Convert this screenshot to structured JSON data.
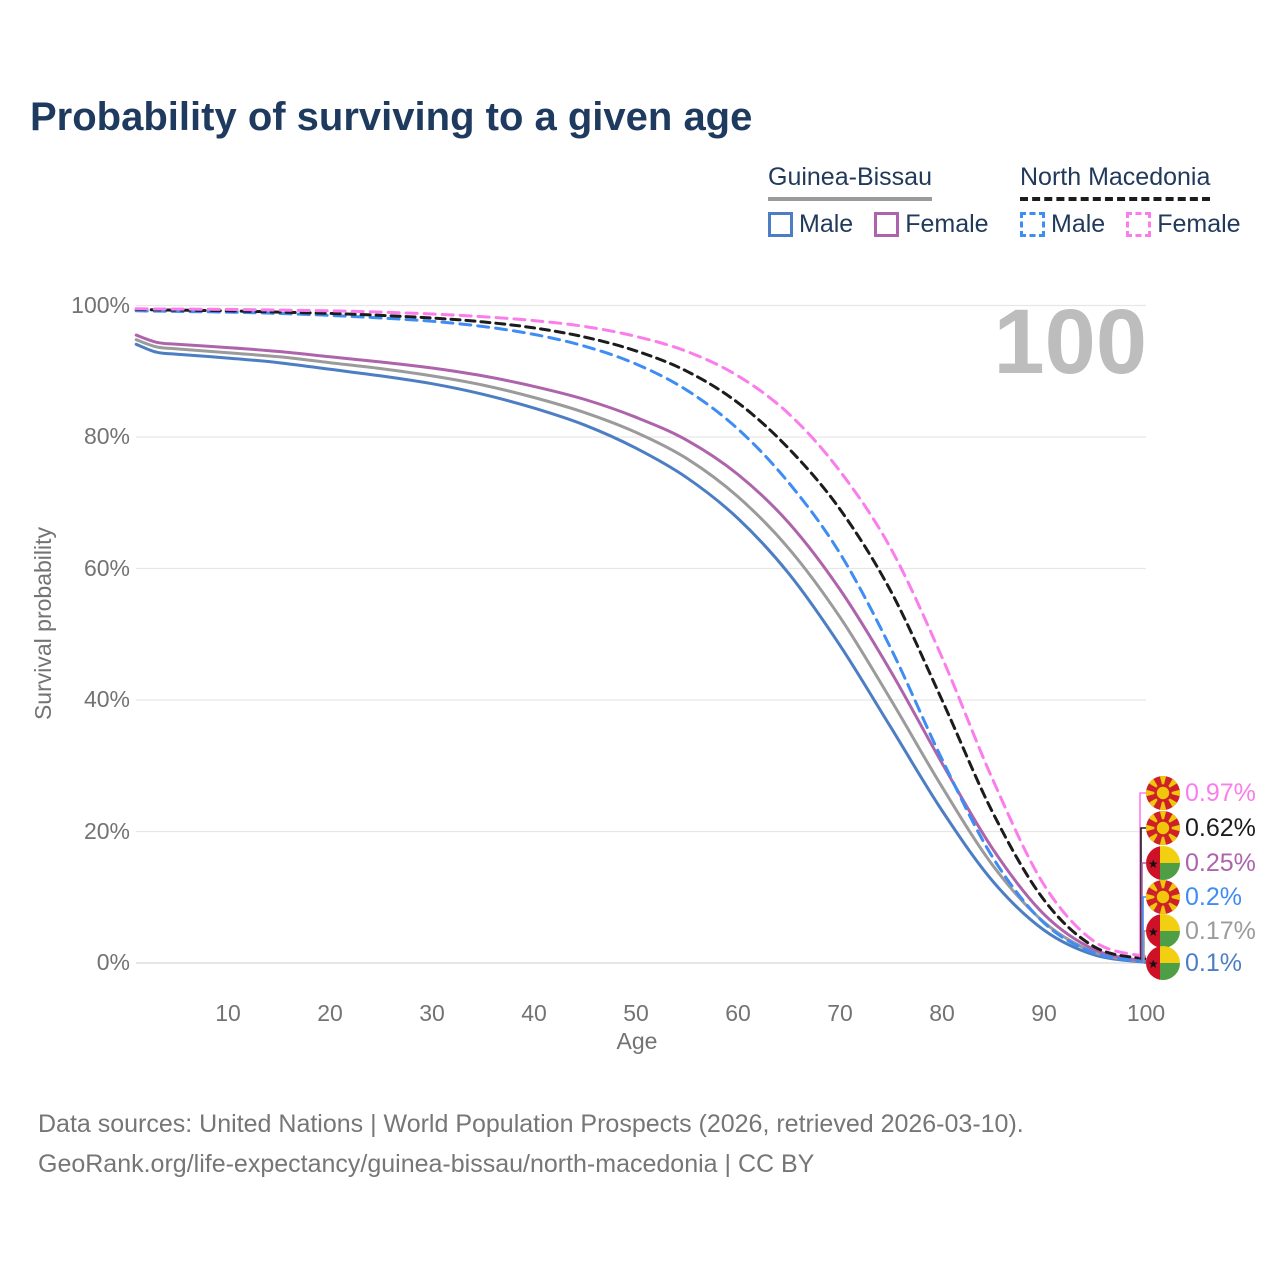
{
  "title": "Probability of surviving to a given age",
  "watermark": "100",
  "legend": {
    "groups": [
      {
        "label": "Guinea-Bissau",
        "line_style": "solid",
        "underline_color": "#9b9b9b",
        "items": [
          {
            "label": "Male",
            "color": "#4d7ec3",
            "dashed": false
          },
          {
            "label": "Female",
            "color": "#ae64ab",
            "dashed": false
          }
        ]
      },
      {
        "label": "North Macedonia",
        "line_style": "dashed",
        "underline_color": "#1c1c1c",
        "items": [
          {
            "label": "Male",
            "color": "#3f8df2",
            "dashed": true
          },
          {
            "label": "Female",
            "color": "#fb7deb",
            "dashed": true
          }
        ]
      }
    ]
  },
  "chart_data": {
    "type": "line",
    "title": "Probability of surviving to a given age",
    "xlabel": "Age",
    "ylabel": "Survival probability",
    "xlim": [
      1,
      100
    ],
    "ylim": [
      0,
      100
    ],
    "grid": "horizontal",
    "x_ticks": [
      {
        "v": 10,
        "label": "10"
      },
      {
        "v": 20,
        "label": "20"
      },
      {
        "v": 30,
        "label": "30"
      },
      {
        "v": 40,
        "label": "40"
      },
      {
        "v": 50,
        "label": "50"
      },
      {
        "v": 60,
        "label": "60"
      },
      {
        "v": 70,
        "label": "70"
      },
      {
        "v": 80,
        "label": "80"
      },
      {
        "v": 90,
        "label": "90"
      },
      {
        "v": 100,
        "label": "100"
      }
    ],
    "y_ticks": [
      {
        "v": 0,
        "label": "0%"
      },
      {
        "v": 20,
        "label": "20%"
      },
      {
        "v": 40,
        "label": "40%"
      },
      {
        "v": 60,
        "label": "60%"
      },
      {
        "v": 80,
        "label": "80%"
      },
      {
        "v": 100,
        "label": "100%"
      }
    ],
    "x": [
      1,
      3,
      5,
      10,
      15,
      20,
      25,
      30,
      35,
      40,
      45,
      50,
      55,
      60,
      65,
      70,
      75,
      80,
      85,
      90,
      95,
      100
    ],
    "series": [
      {
        "key": "gb_male",
        "name": "Guinea-Bissau Male",
        "color": "#4d7ec3",
        "dashed": false,
        "values": [
          94.1,
          92.9,
          92.6,
          92.0,
          91.3,
          90.3,
          89.3,
          88.1,
          86.5,
          84.4,
          81.8,
          78.3,
          73.8,
          67.6,
          59.2,
          48.3,
          35.8,
          23.2,
          12.4,
          5.0,
          1.2,
          0.1
        ]
      },
      {
        "key": "gb_total",
        "name": "Guinea-Bissau Total",
        "color": "#9b9b9b",
        "dashed": false,
        "values": [
          94.8,
          93.7,
          93.4,
          92.8,
          92.2,
          91.3,
          90.4,
          89.3,
          87.9,
          86.0,
          83.7,
          80.7,
          76.7,
          70.9,
          63.0,
          52.6,
          40.0,
          26.8,
          14.8,
          6.2,
          1.6,
          0.17
        ]
      },
      {
        "key": "gb_female",
        "name": "Guinea-Bissau Female",
        "color": "#ae64ab",
        "dashed": false,
        "values": [
          95.5,
          94.4,
          94.1,
          93.6,
          93.0,
          92.2,
          91.4,
          90.5,
          89.3,
          87.7,
          85.7,
          83.0,
          79.5,
          74.3,
          66.9,
          56.8,
          44.3,
          30.4,
          17.3,
          7.4,
          2.0,
          0.25
        ]
      },
      {
        "key": "nm_male",
        "name": "North Macedonia Male",
        "color": "#3f8df2",
        "dashed": true,
        "values": [
          99.2,
          99.15,
          99.1,
          99.0,
          98.8,
          98.5,
          98.1,
          97.6,
          96.8,
          95.6,
          93.8,
          91.1,
          87.1,
          81.2,
          73.0,
          62.3,
          47.8,
          31.0,
          16.0,
          6.1,
          1.5,
          0.2
        ]
      },
      {
        "key": "nm_total",
        "name": "North Macedonia Total",
        "color": "#1c1c1c",
        "dashed": true,
        "values": [
          99.4,
          99.35,
          99.3,
          99.2,
          99.0,
          98.8,
          98.5,
          98.1,
          97.5,
          96.6,
          95.2,
          93.1,
          90.0,
          85.2,
          78.2,
          69.0,
          56.5,
          40.0,
          22.8,
          9.6,
          2.4,
          0.62
        ]
      },
      {
        "key": "nm_female",
        "name": "North Macedonia Female",
        "color": "#fb7deb",
        "dashed": true,
        "values": [
          99.5,
          99.47,
          99.45,
          99.4,
          99.3,
          99.2,
          99.0,
          98.7,
          98.3,
          97.7,
          96.8,
          95.3,
          93.0,
          89.3,
          83.5,
          74.8,
          63.0,
          46.5,
          27.8,
          11.9,
          3.2,
          0.97
        ]
      }
    ],
    "end_labels": [
      {
        "series": "nm_female",
        "value": "0.97%",
        "flag": "north-macedonia"
      },
      {
        "series": "nm_total",
        "value": "0.62%",
        "flag": "north-macedonia"
      },
      {
        "series": "gb_female",
        "value": "0.25%",
        "flag": "guinea-bissau"
      },
      {
        "series": "nm_male",
        "value": "0.2%",
        "flag": "north-macedonia"
      },
      {
        "series": "gb_total",
        "value": "0.17%",
        "flag": "guinea-bissau"
      },
      {
        "series": "gb_male",
        "value": "0.1%",
        "flag": "guinea-bissau"
      }
    ]
  },
  "colors": {
    "title": "#1f3a5f",
    "axis_text": "#737373",
    "gridline": "#e7e7e7",
    "baseline": "#d8d8d8",
    "watermark": "#bdbdbd",
    "footer": "#767676"
  },
  "footer": {
    "line1": "Data sources: United Nations | World Population Prospects (2026, retrieved 2026-03-10).",
    "line2": "GeoRank.org/life-expectancy/guinea-bissau/north-macedonia | CC BY"
  }
}
